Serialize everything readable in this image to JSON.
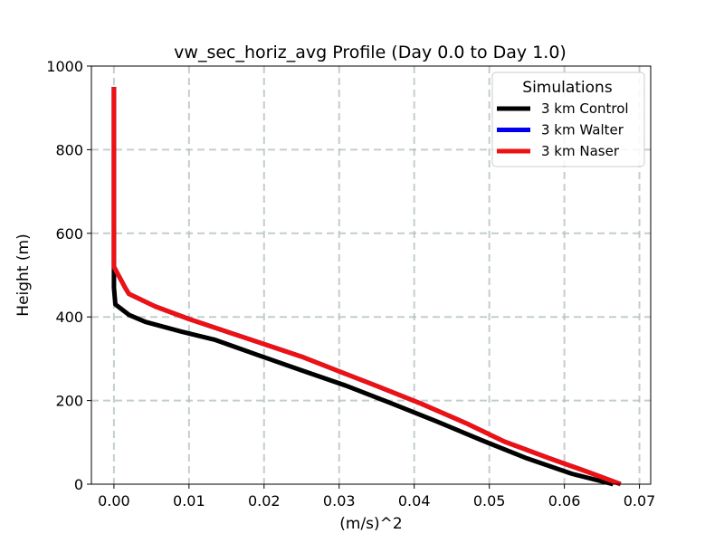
{
  "chart_data": {
    "type": "line",
    "title": "vw_sec_horiz_avg Profile (Day 0.0 to Day 1.0)",
    "xlabel": "(m/s)^2",
    "ylabel": "Height (m)",
    "xlim": [
      -0.003,
      0.0715
    ],
    "ylim": [
      0,
      1000
    ],
    "xticks": [
      0.0,
      0.01,
      0.02,
      0.03,
      0.04,
      0.05,
      0.06,
      0.07
    ],
    "xtick_labels": [
      "0.00",
      "0.01",
      "0.02",
      "0.03",
      "0.04",
      "0.05",
      "0.06",
      "0.07"
    ],
    "yticks": [
      0,
      200,
      400,
      600,
      800,
      1000
    ],
    "ytick_labels": [
      "0",
      "200",
      "400",
      "600",
      "800",
      "1000"
    ],
    "grid": true,
    "legend": {
      "title": "Simulations",
      "position": "top-right"
    },
    "series": [
      {
        "name": "3 km Control",
        "color": "#000000",
        "points": [
          [
            0.0665,
            0
          ],
          [
            0.061,
            25
          ],
          [
            0.055,
            62
          ],
          [
            0.049,
            105
          ],
          [
            0.043,
            150
          ],
          [
            0.037,
            193
          ],
          [
            0.031,
            235
          ],
          [
            0.025,
            272
          ],
          [
            0.019,
            310
          ],
          [
            0.0135,
            345
          ],
          [
            0.009,
            365
          ],
          [
            0.0042,
            388
          ],
          [
            0.002,
            405
          ],
          [
            0.0002,
            430
          ],
          [
            0.0,
            470
          ],
          [
            0.0,
            520
          ],
          [
            0.0,
            600
          ],
          [
            0.0,
            700
          ],
          [
            0.0,
            800
          ],
          [
            0.0,
            950
          ]
        ]
      },
      {
        "name": "3 km Walter",
        "color": "#0000ee",
        "points": [
          [
            0.0675,
            0
          ],
          [
            0.063,
            30
          ],
          [
            0.058,
            62
          ],
          [
            0.052,
            102
          ],
          [
            0.047,
            145
          ],
          [
            0.041,
            192
          ],
          [
            0.035,
            235
          ],
          [
            0.03,
            270
          ],
          [
            0.025,
            305
          ],
          [
            0.02,
            335
          ],
          [
            0.015,
            365
          ],
          [
            0.01,
            395
          ],
          [
            0.0055,
            425
          ],
          [
            0.002,
            455
          ],
          [
            0.0015,
            470
          ],
          [
            0.0,
            520
          ],
          [
            0.0,
            600
          ],
          [
            0.0,
            700
          ],
          [
            0.0,
            800
          ],
          [
            0.0,
            950
          ]
        ]
      },
      {
        "name": "3 km Naser",
        "color": "#ee1111",
        "points": [
          [
            0.0675,
            0
          ],
          [
            0.063,
            30
          ],
          [
            0.058,
            62
          ],
          [
            0.052,
            102
          ],
          [
            0.047,
            145
          ],
          [
            0.041,
            192
          ],
          [
            0.035,
            235
          ],
          [
            0.03,
            270
          ],
          [
            0.025,
            305
          ],
          [
            0.02,
            335
          ],
          [
            0.015,
            365
          ],
          [
            0.01,
            395
          ],
          [
            0.0055,
            425
          ],
          [
            0.002,
            455
          ],
          [
            0.0015,
            470
          ],
          [
            0.0,
            520
          ],
          [
            0.0,
            600
          ],
          [
            0.0,
            700
          ],
          [
            0.0,
            800
          ],
          [
            0.0,
            950
          ]
        ]
      }
    ]
  }
}
